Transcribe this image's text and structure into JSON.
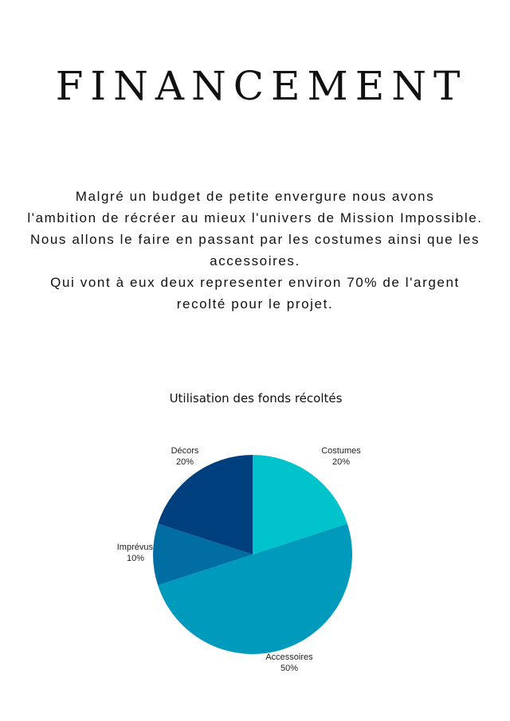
{
  "title": "FINANCEMENT",
  "paragraph": [
    "Malgré un budget de petite envergure nous avons",
    "l'ambition de récréer au mieux l'univers de Mission Impossible.",
    "Nous allons le faire en passant par les costumes ainsi que les",
    "accessoires.",
    "Qui vont à eux deux representer environ 70% de l'argent",
    "recolté pour le projet."
  ],
  "chart_data": {
    "type": "pie",
    "title": "Utilisation des fonds récoltés",
    "slices": [
      {
        "label": "Costumes",
        "value": 20,
        "pct": "20%",
        "color": "#00c3cc"
      },
      {
        "label": "Accessoires",
        "value": 50,
        "pct": "50%",
        "color": "#009abd"
      },
      {
        "label": "Imprévus",
        "value": 10,
        "pct": "10%",
        "color": "#006ea2"
      },
      {
        "label": "Décors",
        "value": 20,
        "pct": "20%",
        "color": "#003f7e"
      }
    ],
    "start": "top",
    "direction": "clockwise",
    "legend": "none"
  }
}
